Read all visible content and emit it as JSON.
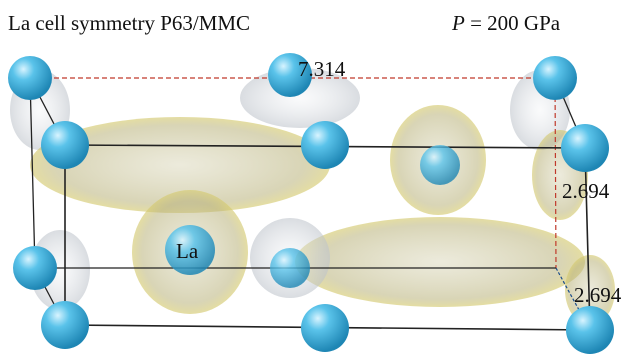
{
  "header": {
    "title": "La cell symmetry P63/MMC",
    "pressure_symbol": "P",
    "pressure_value": "= 200 GPa"
  },
  "labels": {
    "a": "7.314",
    "c1": "2.694",
    "atom": "La",
    "c2": "2.694"
  }
}
